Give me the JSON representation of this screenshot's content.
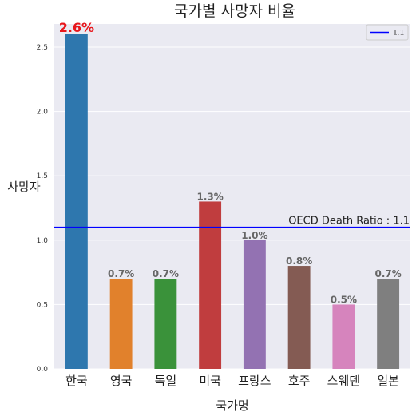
{
  "chart_data": {
    "type": "bar",
    "title": "국가별 사망자 비율",
    "xlabel": "국가명",
    "ylabel": "사망자",
    "categories": [
      "한국",
      "영국",
      "독일",
      "미국",
      "프랑스",
      "호주",
      "스웨덴",
      "일본"
    ],
    "values": [
      2.6,
      0.7,
      0.7,
      1.3,
      1.0,
      0.8,
      0.5,
      0.7
    ],
    "data_labels": [
      "2.6%",
      "0.7%",
      "0.7%",
      "1.3%",
      "1.0%",
      "0.8%",
      "0.5%",
      "0.7%"
    ],
    "highlight_index": 0,
    "colors": [
      "#2e77ae",
      "#e1812c",
      "#3a923a",
      "#c03d3e",
      "#9372b2",
      "#845b53",
      "#d684bd",
      "#7f7f7f"
    ],
    "highlight_label_color": "#e8161b",
    "ylim": [
      0,
      2.68
    ],
    "yticks": [
      "0.0",
      "0.5",
      "1.0",
      "1.5",
      "2.0",
      "2.5"
    ],
    "grid": true,
    "background": "#eaeaf2",
    "reference_line": {
      "value": 1.1,
      "color": "#0000ff",
      "label": "OECD Death Ratio : 1.1",
      "legend_label": "1.1"
    },
    "legend_position": "top-right"
  }
}
